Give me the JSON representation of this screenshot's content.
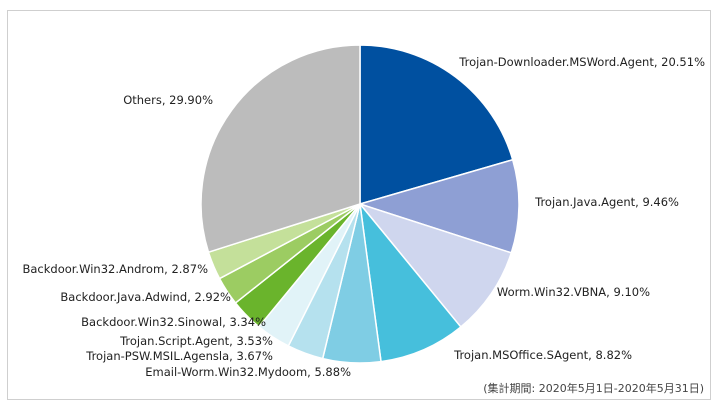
{
  "chart_data": {
    "type": "pie",
    "title": "",
    "caption": "(集計期間: 2020年5月1日-2020年5月31日)",
    "slices": [
      {
        "name": "Trojan-Downloader.MSWord.Agent",
        "label": "Trojan-Downloader.MSWord.Agent, 20.51%",
        "value": 20.51,
        "color": "#0050a0"
      },
      {
        "name": "Trojan.Java.Agent",
        "label": "Trojan.Java.Agent, 9.46%",
        "value": 9.46,
        "color": "#8e9fd4"
      },
      {
        "name": "Worm.Win32.VBNA",
        "label": "Worm.Win32.VBNA, 9.10%",
        "value": 9.1,
        "color": "#cfd6ee"
      },
      {
        "name": "Trojan.MSOffice.SAgent",
        "label": "Trojan.MSOffice.SAgent, 8.82%",
        "value": 8.82,
        "color": "#46bfdc"
      },
      {
        "name": "Email-Worm.Win32.Mydoom",
        "label": "Email-Worm.Win32.Mydoom, 5.88%",
        "value": 5.88,
        "color": "#7fcde4"
      },
      {
        "name": "Trojan-PSW.MSIL.Agensla",
        "label": "Trojan-PSW.MSIL.Agensla, 3.67%",
        "value": 3.67,
        "color": "#b5e1ee"
      },
      {
        "name": "Trojan.Script.Agent",
        "label": "Trojan.Script.Agent, 3.53%",
        "value": 3.53,
        "color": "#e1f3f8"
      },
      {
        "name": "Backdoor.Win32.Sinowal",
        "label": "Backdoor.Win32.Sinowal, 3.34%",
        "value": 3.34,
        "color": "#6ab42c"
      },
      {
        "name": "Backdoor.Java.Adwind",
        "label": "Backdoor.Java.Adwind, 2.92%",
        "value": 2.92,
        "color": "#9ccc62"
      },
      {
        "name": "Backdoor.Win32.Androm",
        "label": "Backdoor.Win32.Androm, 2.87%",
        "value": 2.87,
        "color": "#c4e09a"
      },
      {
        "name": "Others",
        "label": "Others, 29.90%",
        "value": 29.9,
        "color": "#bcbcbc"
      }
    ]
  }
}
